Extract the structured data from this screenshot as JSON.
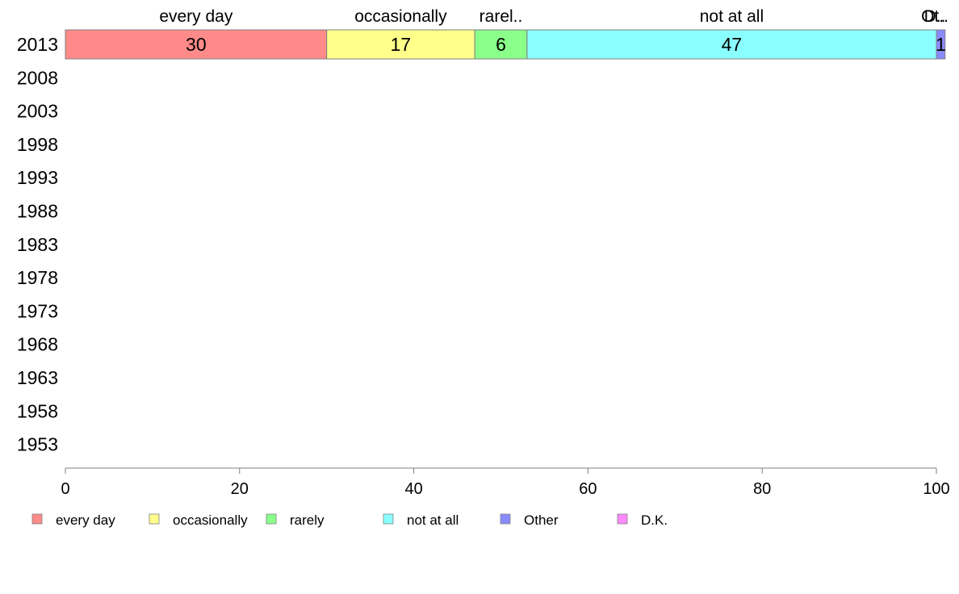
{
  "chart_data": {
    "type": "bar",
    "orientation": "horizontal",
    "stacked": true,
    "categories": [
      "2013",
      "2008",
      "2003",
      "1998",
      "1993",
      "1988",
      "1983",
      "1978",
      "1973",
      "1968",
      "1963",
      "1958",
      "1953"
    ],
    "series": [
      {
        "name": "every day",
        "color": "#ff8a8a",
        "values": [
          30,
          null,
          null,
          null,
          null,
          null,
          null,
          null,
          null,
          null,
          null,
          null,
          null
        ]
      },
      {
        "name": "occasionally",
        "color": "#ffff8a",
        "values": [
          17,
          null,
          null,
          null,
          null,
          null,
          null,
          null,
          null,
          null,
          null,
          null,
          null
        ]
      },
      {
        "name": "rarely",
        "color": "#8aff8a",
        "values": [
          6,
          null,
          null,
          null,
          null,
          null,
          null,
          null,
          null,
          null,
          null,
          null,
          null
        ]
      },
      {
        "name": "not at all",
        "color": "#8affff",
        "values": [
          47,
          null,
          null,
          null,
          null,
          null,
          null,
          null,
          null,
          null,
          null,
          null,
          null
        ]
      },
      {
        "name": "Other",
        "color": "#8a8aff",
        "values": [
          1,
          null,
          null,
          null,
          null,
          null,
          null,
          null,
          null,
          null,
          null,
          null,
          null
        ]
      },
      {
        "name": "D.K.",
        "color": "#ff8aff",
        "values": [
          0,
          null,
          null,
          null,
          null,
          null,
          null,
          null,
          null,
          null,
          null,
          null,
          null
        ]
      }
    ],
    "top_labels": [
      "every day",
      "occasionally",
      "rarel..",
      "not at all",
      "Ot..",
      "D.."
    ],
    "bar_value_labels": [
      "30",
      "17",
      "6",
      "47",
      "1"
    ],
    "xlim": [
      0,
      100
    ],
    "xticks": [
      0,
      20,
      40,
      60,
      80,
      100
    ],
    "grid": false,
    "legend_position": "bottom",
    "title": "",
    "xlabel": "",
    "ylabel": ""
  }
}
